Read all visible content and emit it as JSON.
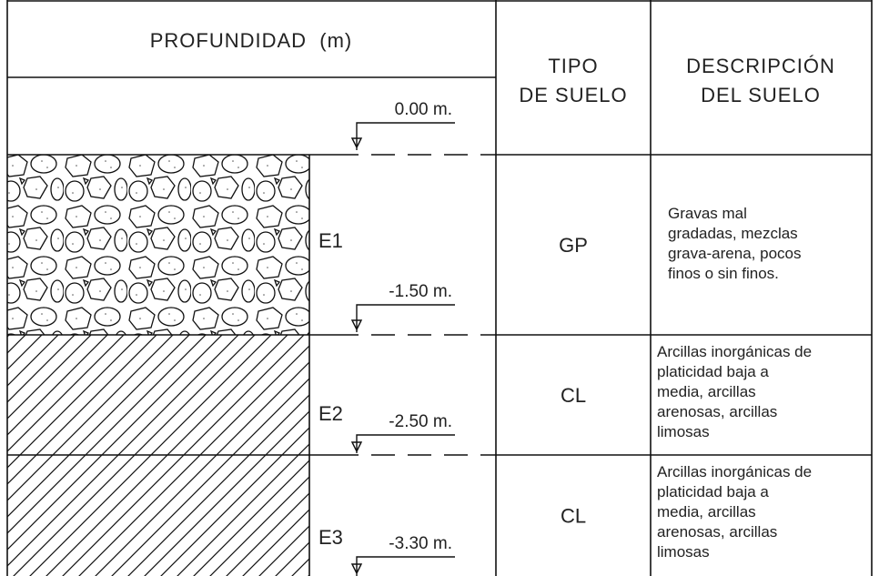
{
  "header": {
    "depth": "PROFUNDIDAD  (m)",
    "type_lines": [
      "TIPO",
      "DE SUELO"
    ],
    "description_lines": [
      "DESCRIPCIÓN",
      "DEL SUELO"
    ]
  },
  "surface_level": "0.00 m.",
  "strata": [
    {
      "name": "E1",
      "level": "-1.50 m.",
      "type": "GP",
      "description_lines": [
        "Gravas mal",
        "gradadas, mezclas",
        "grava-arena, pocos",
        "finos o sin finos."
      ]
    },
    {
      "name": "E2",
      "level": "-2.50 m.",
      "type": "CL",
      "description_lines": [
        "Arcillas inorgánicas de",
        "platicidad baja a",
        "media, arcillas",
        "arenosas, arcillas",
        "limosas"
      ]
    },
    {
      "name": "E3",
      "level": "-3.30 m.",
      "type": "CL",
      "description_lines": [
        "Arcillas inorgánicas de",
        "platicidad baja a",
        "media, arcillas",
        "arenosas, arcillas",
        "limosas"
      ]
    }
  ]
}
